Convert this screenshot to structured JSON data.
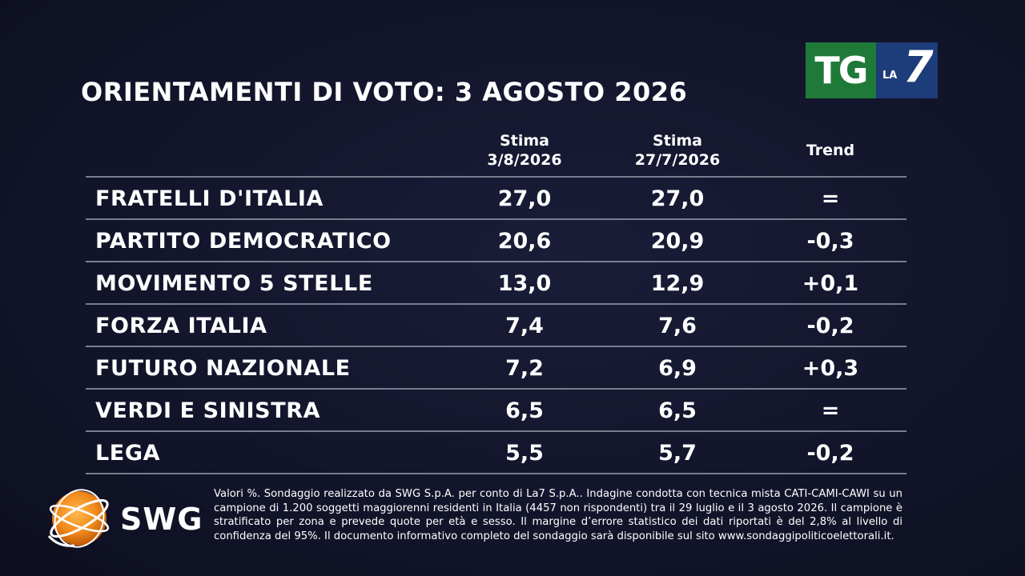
{
  "title": "ORIENTAMENTI DI VOTO: 3 AGOSTO 2026",
  "logo": {
    "tg": "TG",
    "la": "LA",
    "seven": "7"
  },
  "table": {
    "headers": {
      "col1_line1": "Stima",
      "col1_line2": "3/8/2026",
      "col2_line1": "Stima",
      "col2_line2": "27/7/2026",
      "col3": "Trend"
    },
    "rows": [
      {
        "party": "FRATELLI D'ITALIA",
        "v1": "27,0",
        "v2": "27,0",
        "trend": "="
      },
      {
        "party": "PARTITO DEMOCRATICO",
        "v1": "20,6",
        "v2": "20,9",
        "trend": "-0,3"
      },
      {
        "party": "MOVIMENTO 5 STELLE",
        "v1": "13,0",
        "v2": "12,9",
        "trend": "+0,1"
      },
      {
        "party": "FORZA ITALIA",
        "v1": "7,4",
        "v2": "7,6",
        "trend": "-0,2"
      },
      {
        "party": "FUTURO NAZIONALE",
        "v1": "7,2",
        "v2": "6,9",
        "trend": "+0,3"
      },
      {
        "party": "VERDI E SINISTRA",
        "v1": "6,5",
        "v2": "6,5",
        "trend": "="
      },
      {
        "party": "LEGA",
        "v1": "5,5",
        "v2": "5,7",
        "trend": "-0,2"
      }
    ]
  },
  "swg": {
    "label": "SWG"
  },
  "footnote": "Valori %. Sondaggio realizzato da SWG S.p.A. per conto di La7 S.p.A.. Indagine condotta con tecnica mista CATI-CAMI-CAWI su un campione di 1.200 soggetti maggiorenni residenti in Italia (4457 non rispondenti) tra il 29 luglio e il 3 agosto 2026. Il campione è stratificato per zona e prevede quote per età e sesso. Il margine d’errore statistico dei dati riportati è del 2,8% al livello di confidenza del 95%. Il documento informativo completo del sondaggio sarà disponibile sul sito www.sondaggipoliticoelettorali.it.",
  "colors": {
    "background": "#12142a",
    "tg_green": "#1f7a3a",
    "la7_blue": "#1d3c7a",
    "swg_orange": "#f08a1c",
    "divider": "#7a7d8e"
  }
}
